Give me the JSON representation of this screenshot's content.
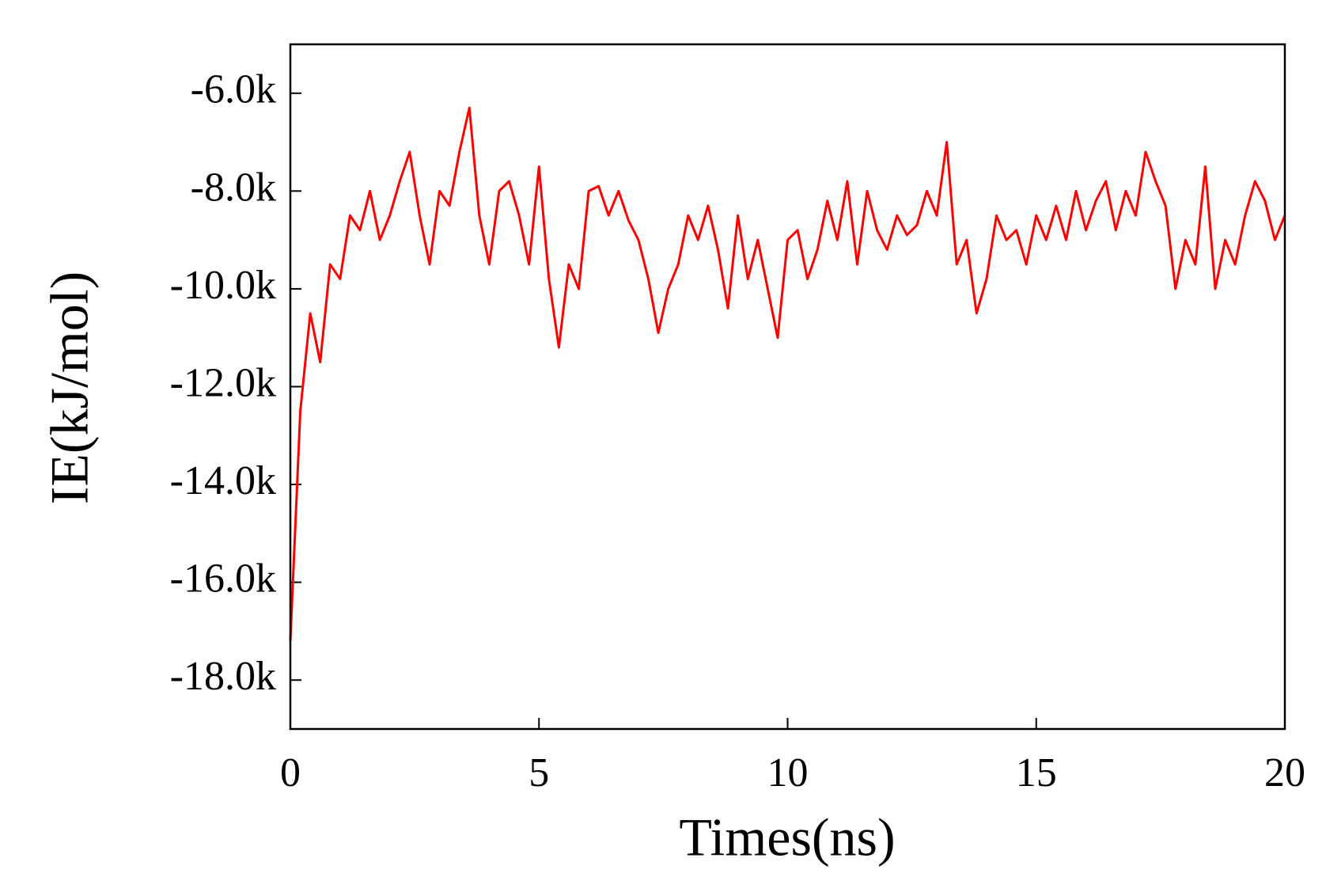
{
  "chart_data": {
    "type": "line",
    "xlabel": "Times(ns)",
    "ylabel": "IE(kJ/mol)",
    "xlim": [
      0,
      20
    ],
    "xticks": [
      0,
      5,
      10,
      15,
      20
    ],
    "ylim": [
      -19000,
      -5000
    ],
    "yticks": [
      {
        "value": -18000,
        "label": "-18.0k"
      },
      {
        "value": -16000,
        "label": "-16.0k"
      },
      {
        "value": -14000,
        "label": "-14.0k"
      },
      {
        "value": -12000,
        "label": "-12.0k"
      },
      {
        "value": -10000,
        "label": "-10.0k"
      },
      {
        "value": -8000,
        "label": "-8.0k"
      },
      {
        "value": -6000,
        "label": "-6.0k"
      }
    ],
    "x": [
      0,
      0.2,
      0.4,
      0.6,
      0.8,
      1.0,
      1.2,
      1.4,
      1.6,
      1.8,
      2.0,
      2.2,
      2.4,
      2.6,
      2.8,
      3.0,
      3.2,
      3.4,
      3.6,
      3.8,
      4.0,
      4.2,
      4.4,
      4.6,
      4.8,
      5.0,
      5.2,
      5.4,
      5.6,
      5.8,
      6.0,
      6.2,
      6.4,
      6.6,
      6.8,
      7.0,
      7.2,
      7.4,
      7.6,
      7.8,
      8.0,
      8.2,
      8.4,
      8.6,
      8.8,
      9.0,
      9.2,
      9.4,
      9.6,
      9.8,
      10.0,
      10.2,
      10.4,
      10.6,
      10.8,
      11.0,
      11.2,
      11.4,
      11.6,
      11.8,
      12.0,
      12.2,
      12.4,
      12.6,
      12.8,
      13.0,
      13.2,
      13.4,
      13.6,
      13.8,
      14.0,
      14.2,
      14.4,
      14.6,
      14.8,
      15.0,
      15.2,
      15.4,
      15.6,
      15.8,
      16.0,
      16.2,
      16.4,
      16.6,
      16.8,
      17.0,
      17.2,
      17.4,
      17.6,
      17.8,
      18.0,
      18.2,
      18.4,
      18.6,
      18.8,
      19.0,
      19.2,
      19.4,
      19.6,
      19.8,
      20.0
    ],
    "series": [
      {
        "color": "#ff0000",
        "values": [
          -17200,
          -12500,
          -10500,
          -11500,
          -9500,
          -9800,
          -8500,
          -8800,
          -8000,
          -9000,
          -8500,
          -7800,
          -7200,
          -8500,
          -9500,
          -8000,
          -8300,
          -7200,
          -6300,
          -8500,
          -9500,
          -8000,
          -7800,
          -8500,
          -9500,
          -7500,
          -9800,
          -11200,
          -9500,
          -10000,
          -8000,
          -7900,
          -8500,
          -8000,
          -8600,
          -9000,
          -9800,
          -10900,
          -10000,
          -9500,
          -8500,
          -9000,
          -8300,
          -9200,
          -10400,
          -8500,
          -9800,
          -9000,
          -10000,
          -11000,
          -9000,
          -8800,
          -9800,
          -9200,
          -8200,
          -9000,
          -7800,
          -9500,
          -8000,
          -8800,
          -9200,
          -8500,
          -8900,
          -8700,
          -8000,
          -8500,
          -7000,
          -9500,
          -9000,
          -10500,
          -9800,
          -8500,
          -9000,
          -8800,
          -9500,
          -8500,
          -9000,
          -8300,
          -9000,
          -8000,
          -8800,
          -8200,
          -7800,
          -8800,
          -8000,
          -8500,
          -7200,
          -7800,
          -8300,
          -10000,
          -9000,
          -9500,
          -7500,
          -10000,
          -9000,
          -9500,
          -8500,
          -7800,
          -8200,
          -9000,
          -8500
        ]
      }
    ]
  }
}
